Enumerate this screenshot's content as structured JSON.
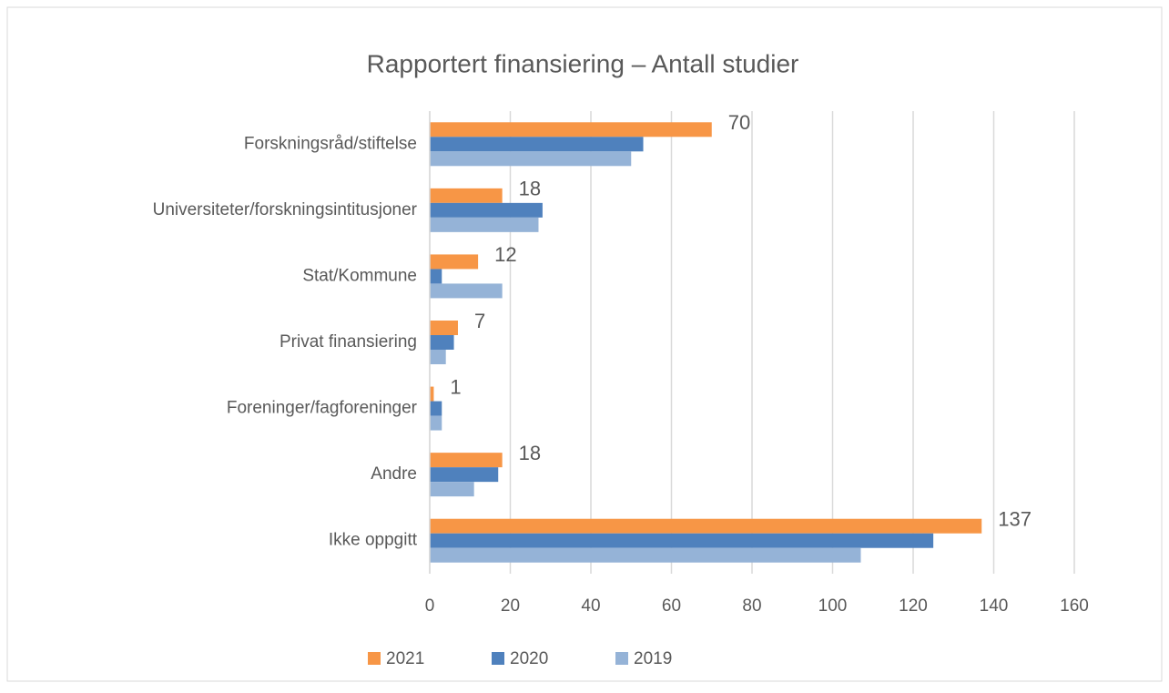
{
  "chart_data": {
    "type": "hbar",
    "title": "Rapportert finansiering – Antall studier",
    "categories": [
      "Forskningsråd/stiftelse",
      "Universiteter/forskningsintitusjoner",
      "Stat/Kommune",
      "Privat finansiering",
      "Foreninger/fagforeninger",
      "Andre",
      "Ikke oppgitt"
    ],
    "series": [
      {
        "name": "2021",
        "color": "#f79646",
        "values": [
          70,
          18,
          12,
          7,
          1,
          18,
          137
        ],
        "data_labels": true
      },
      {
        "name": "2020",
        "color": "#4f81bd",
        "values": [
          53,
          28,
          3,
          6,
          3,
          17,
          125
        ]
      },
      {
        "name": "2019",
        "color": "#95b3d7",
        "values": [
          50,
          27,
          18,
          4,
          3,
          11,
          107
        ]
      }
    ],
    "xlim": [
      0,
      160
    ],
    "xticks": [
      0,
      20,
      40,
      60,
      80,
      100,
      120,
      140,
      160
    ],
    "grid": true,
    "legend": "bottom"
  }
}
